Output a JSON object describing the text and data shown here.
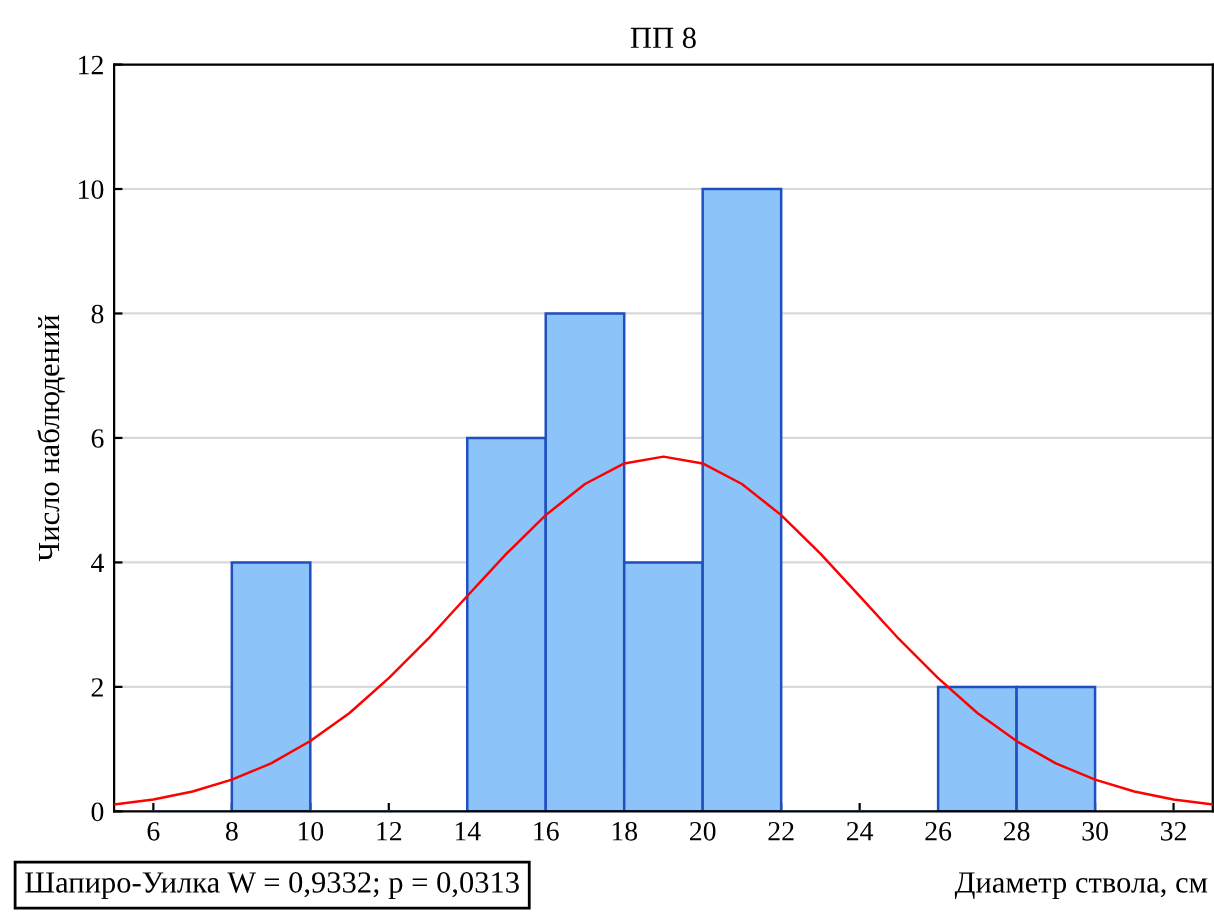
{
  "chart_data": {
    "type": "histogram",
    "title": "ПП 8",
    "xlabel": "Диаметр ствола, см",
    "ylabel": "Число наблюдений",
    "bins": [
      6,
      8,
      10,
      12,
      14,
      16,
      18,
      20,
      22,
      24,
      26,
      28,
      30
    ],
    "series": [
      {
        "color": "#8cc4fa",
        "values": [
          0,
          4,
          0,
          0,
          6,
          8,
          4,
          10,
          0,
          0,
          2,
          2
        ]
      },
      {
        "type": "line",
        "color": "#ff0000",
        "x": [
          5,
          6,
          7,
          8,
          9,
          10,
          11,
          12,
          13,
          14,
          15,
          16,
          17,
          18,
          19,
          20,
          21,
          22,
          23,
          24,
          25,
          26,
          27,
          28,
          29,
          30,
          31,
          32,
          33
        ],
        "values": [
          0.11,
          0.19,
          0.32,
          0.51,
          0.77,
          1.13,
          1.58,
          2.14,
          2.77,
          3.46,
          4.14,
          4.76,
          5.26,
          5.59,
          5.7,
          5.59,
          5.26,
          4.76,
          4.14,
          3.46,
          2.77,
          2.14,
          1.58,
          1.13,
          0.77,
          0.51,
          0.32,
          0.19,
          0.11
        ]
      }
    ],
    "xlim": [
      5,
      33
    ],
    "xticks": [
      6,
      8,
      10,
      12,
      14,
      16,
      18,
      20,
      22,
      24,
      26,
      28,
      30,
      32
    ],
    "ylim": [
      0,
      12
    ],
    "yticks": [
      0,
      2,
      4,
      6,
      8,
      10,
      12
    ],
    "grid": "y",
    "marker": "none",
    "line_style": "solid",
    "annotations": [
      "Шапиро-Уилка W = 0,9332; p = 0,0313"
    ]
  }
}
